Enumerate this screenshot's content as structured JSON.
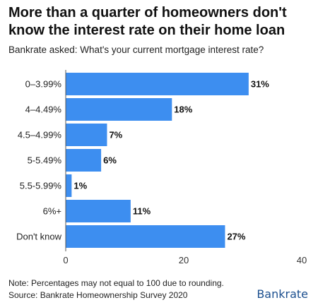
{
  "title_line1": "More than a quarter of homeowners don't",
  "title_line2": "know the interest rate on their home loan",
  "subtitle": "Bankrate asked: What's your current mortgage interest rate?",
  "note": "Note: Percentages may not equal to 100 due to rounding.",
  "source": "Source: Bankrate Homeownership Survey 2020",
  "logo": "Bankrate",
  "colors": {
    "bar": "#3d8ef0",
    "logo": "#1b4f8f"
  },
  "chart_data": {
    "type": "bar",
    "orientation": "horizontal",
    "categories": [
      "0–3.99%",
      "4–4.49%",
      "4.5–4.99%",
      "5-5.49%",
      "5.5-5.99%",
      "6%+",
      "Don't know"
    ],
    "values": [
      31,
      18,
      7,
      6,
      1,
      11,
      27
    ],
    "value_labels": [
      "31%",
      "18%",
      "7%",
      "6%",
      "1%",
      "11%",
      "27%"
    ],
    "xlim": [
      0,
      40
    ],
    "xticks": [
      0,
      20,
      40
    ],
    "grid": false
  }
}
